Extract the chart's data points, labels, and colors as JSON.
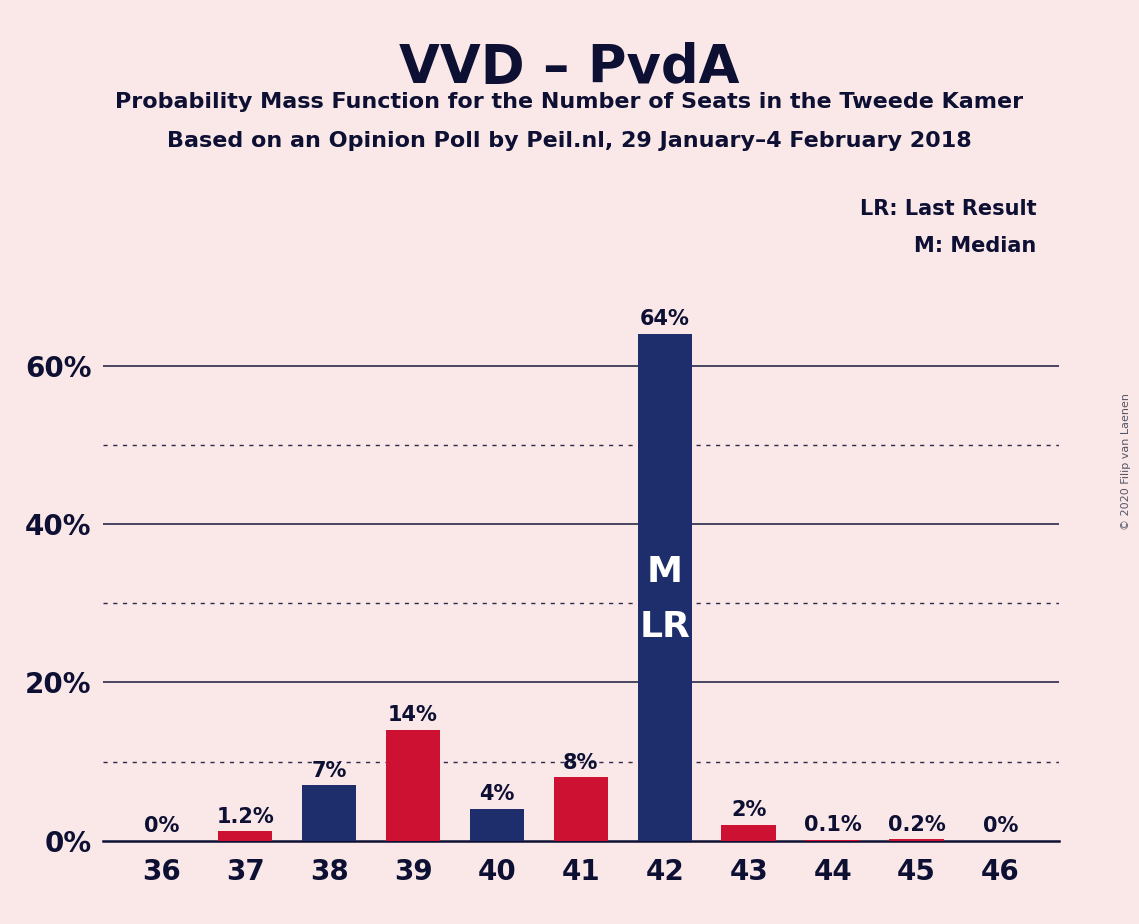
{
  "title": "VVD – PvdA",
  "subtitle1": "Probability Mass Function for the Number of Seats in the Tweede Kamer",
  "subtitle2": "Based on an Opinion Poll by Peil.nl, 29 January–4 February 2018",
  "copyright": "© 2020 Filip van Laenen",
  "seats": [
    36,
    37,
    38,
    39,
    40,
    41,
    42,
    43,
    44,
    45,
    46
  ],
  "values": [
    0.0,
    1.2,
    7.0,
    14.0,
    4.0,
    8.0,
    64.0,
    2.0,
    0.1,
    0.2,
    0.0
  ],
  "bar_colors": [
    "#cc1133",
    "#cc1133",
    "#1e2d6b",
    "#cc1133",
    "#1e2d6b",
    "#cc1133",
    "#1e2d6b",
    "#cc1133",
    "#cc1133",
    "#cc1133",
    "#cc1133"
  ],
  "labels": [
    "0%",
    "1.2%",
    "7%",
    "14%",
    "4%",
    "8%",
    "64%",
    "2%",
    "0.1%",
    "0.2%",
    "0%"
  ],
  "median_bar": 42,
  "lr_bar": 42,
  "bar_inner_label_line1": "M",
  "bar_inner_label_line2": "LR",
  "legend_lr": "LR: Last Result",
  "legend_m": "M: Median",
  "background_color": "#fae8e8",
  "navy_color": "#1e2d6b",
  "red_color": "#cc1133",
  "title_color": "#0d1033",
  "ylim": [
    0,
    70
  ],
  "ytick_positions": [
    0,
    20,
    40,
    60
  ],
  "ytick_labels": [
    "0%",
    "20%",
    "40%",
    "60%"
  ],
  "solid_gridlines": [
    20,
    40,
    60
  ],
  "dotted_gridlines": [
    10,
    30,
    50
  ],
  "bar_width": 0.65
}
